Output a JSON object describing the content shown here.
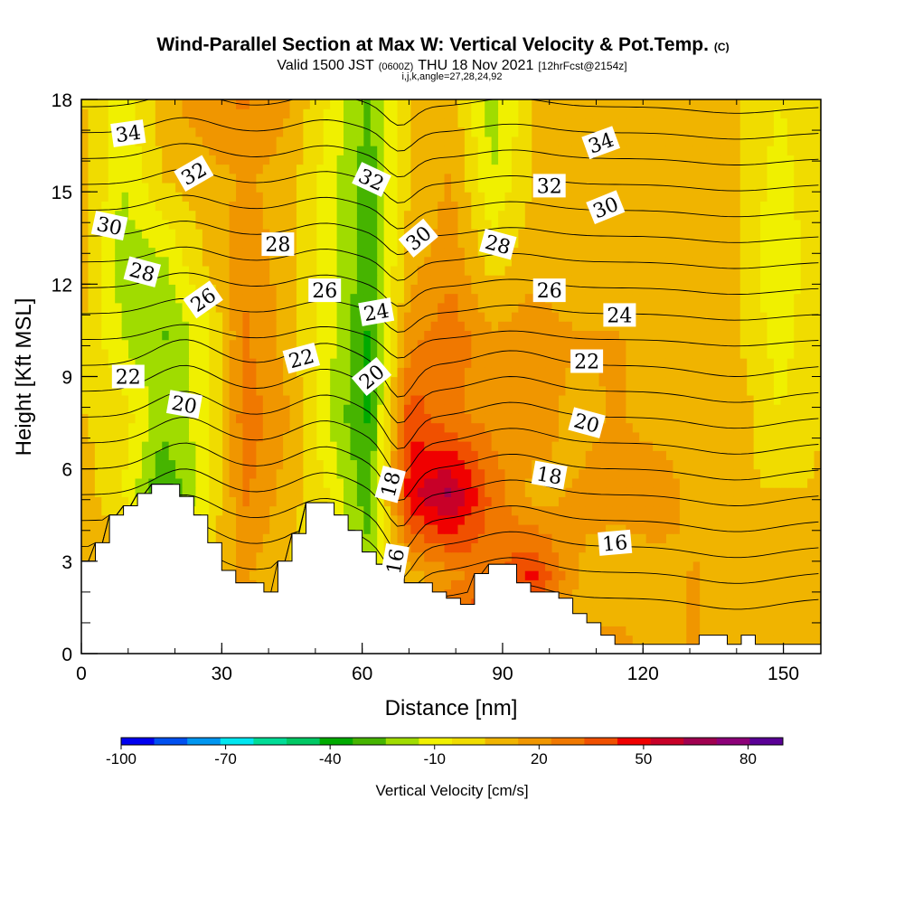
{
  "chart_data": {
    "type": "heatmap",
    "title": "Wind-Parallel Section at Max W: Vertical Velocity & Pot.Temp.",
    "title_suffix": "(C)",
    "subtitle_parts": [
      "Valid 1500 JST",
      "(0600Z)",
      "THU 18 Nov 2021",
      "[12hrFcst@2154z]"
    ],
    "subtitle2": "i,j,k,angle=27,28,24,92",
    "xlabel": "Distance [nm]",
    "ylabel": "Height [Kft MSL]",
    "xlim": [
      0,
      158
    ],
    "ylim": [
      0,
      18
    ],
    "x_ticks": [
      0,
      30,
      60,
      90,
      120,
      150
    ],
    "y_ticks": [
      0,
      3,
      6,
      9,
      12,
      15,
      18
    ],
    "x_minor_step": 10,
    "y_minor_step": 1,
    "colorbar": {
      "label": "Vertical Velocity [cm/s]",
      "tick_labels": [
        "-100",
        "-70",
        "-40",
        "-10",
        "20",
        "50",
        "80"
      ],
      "colors": [
        "#0000f0",
        "#0050f0",
        "#0096f0",
        "#00e6f0",
        "#00dc96",
        "#00c864",
        "#00aa00",
        "#46b400",
        "#a0dc00",
        "#f0f000",
        "#f0dc00",
        "#f0b400",
        "#f09600",
        "#f07800",
        "#f05000",
        "#f00000",
        "#c80028",
        "#a00050",
        "#8c0078",
        "#5a0096"
      ],
      "range": [
        -100,
        90
      ]
    },
    "contour_labels": [
      {
        "text": "34",
        "x": 10,
        "y": 16.9,
        "rot": -8
      },
      {
        "text": "32",
        "x": 24,
        "y": 15.6,
        "rot": -30
      },
      {
        "text": "32",
        "x": 62,
        "y": 15.4,
        "rot": 25
      },
      {
        "text": "32",
        "x": 100,
        "y": 15.2,
        "rot": 0
      },
      {
        "text": "34",
        "x": 111,
        "y": 16.6,
        "rot": -20
      },
      {
        "text": "30",
        "x": 6,
        "y": 13.9,
        "rot": 12
      },
      {
        "text": "30",
        "x": 72,
        "y": 13.5,
        "rot": -40
      },
      {
        "text": "30",
        "x": 112,
        "y": 14.5,
        "rot": -22
      },
      {
        "text": "28",
        "x": 13,
        "y": 12.4,
        "rot": 15
      },
      {
        "text": "28",
        "x": 42,
        "y": 13.3,
        "rot": 0
      },
      {
        "text": "28",
        "x": 89,
        "y": 13.3,
        "rot": 15
      },
      {
        "text": "26",
        "x": 26,
        "y": 11.5,
        "rot": -35
      },
      {
        "text": "26",
        "x": 52,
        "y": 11.8,
        "rot": 0
      },
      {
        "text": "26",
        "x": 100,
        "y": 11.8,
        "rot": 0
      },
      {
        "text": "24",
        "x": 63,
        "y": 11.1,
        "rot": -10
      },
      {
        "text": "24",
        "x": 115,
        "y": 11.0,
        "rot": 0
      },
      {
        "text": "22",
        "x": 10,
        "y": 9.0,
        "rot": 0
      },
      {
        "text": "22",
        "x": 47,
        "y": 9.6,
        "rot": -15
      },
      {
        "text": "22",
        "x": 108,
        "y": 9.5,
        "rot": 0
      },
      {
        "text": "20",
        "x": 22,
        "y": 8.1,
        "rot": 10
      },
      {
        "text": "20",
        "x": 62,
        "y": 9.0,
        "rot": -40
      },
      {
        "text": "20",
        "x": 108,
        "y": 7.5,
        "rot": 15
      },
      {
        "text": "18",
        "x": 66,
        "y": 5.5,
        "rot": -75
      },
      {
        "text": "18",
        "x": 100,
        "y": 5.8,
        "rot": 10
      },
      {
        "text": "16",
        "x": 67,
        "y": 3.0,
        "rot": -80
      },
      {
        "text": "16",
        "x": 114,
        "y": 3.6,
        "rot": -5
      }
    ],
    "terrain": [
      [
        0,
        3
      ],
      [
        3,
        3
      ],
      [
        3,
        3.6
      ],
      [
        6,
        3.6
      ],
      [
        6,
        4.5
      ],
      [
        9,
        4.5
      ],
      [
        9,
        4.8
      ],
      [
        12,
        4.8
      ],
      [
        12,
        5.2
      ],
      [
        15,
        5.2
      ],
      [
        15,
        5.5
      ],
      [
        21,
        5.5
      ],
      [
        21,
        5.1
      ],
      [
        24,
        5.1
      ],
      [
        24,
        4.5
      ],
      [
        27,
        4.5
      ],
      [
        27,
        3.6
      ],
      [
        30,
        3.6
      ],
      [
        30,
        2.7
      ],
      [
        33,
        2.7
      ],
      [
        33,
        2.3
      ],
      [
        39,
        2.3
      ],
      [
        39,
        2.0
      ],
      [
        42,
        2.0
      ],
      [
        42,
        3.0
      ],
      [
        45,
        3.0
      ],
      [
        45,
        3.9
      ],
      [
        48,
        3.9
      ],
      [
        48,
        4.9
      ],
      [
        54,
        4.9
      ],
      [
        54,
        4.5
      ],
      [
        57,
        4.5
      ],
      [
        57,
        4.0
      ],
      [
        60,
        4.0
      ],
      [
        60,
        3.3
      ],
      [
        63,
        3.3
      ],
      [
        63,
        2.9
      ],
      [
        66,
        2.9
      ],
      [
        66,
        2.6
      ],
      [
        69,
        2.6
      ],
      [
        69,
        2.3
      ],
      [
        75,
        2.3
      ],
      [
        75,
        2.0
      ],
      [
        78,
        2.0
      ],
      [
        78,
        1.8
      ],
      [
        81,
        1.8
      ],
      [
        81,
        1.6
      ],
      [
        84,
        1.6
      ],
      [
        84,
        2.6
      ],
      [
        87,
        2.6
      ],
      [
        87,
        2.9
      ],
      [
        93,
        2.9
      ],
      [
        93,
        2.3
      ],
      [
        96,
        2.3
      ],
      [
        96,
        2.0
      ],
      [
        102,
        2.0
      ],
      [
        102,
        1.8
      ],
      [
        105,
        1.8
      ],
      [
        105,
        1.3
      ],
      [
        108,
        1.3
      ],
      [
        108,
        1.0
      ],
      [
        111,
        1.0
      ],
      [
        111,
        0.6
      ],
      [
        114,
        0.6
      ],
      [
        114,
        0.3
      ],
      [
        132,
        0.3
      ],
      [
        132,
        0.6
      ],
      [
        138,
        0.6
      ],
      [
        138,
        0.3
      ],
      [
        141,
        0.3
      ],
      [
        141,
        0.6
      ],
      [
        144,
        0.6
      ],
      [
        144,
        0.3
      ],
      [
        158,
        0.3
      ]
    ],
    "w_field": [
      [
        5,
        25,
        30,
        35,
        20,
        15,
        -10,
        -15,
        10,
        45,
        50,
        20,
        10,
        20,
        10,
        15,
        5,
        10,
        5
      ],
      [
        8,
        20,
        15,
        10,
        15,
        5,
        -10,
        -20,
        10,
        20,
        30,
        45,
        15,
        5,
        10,
        15,
        5,
        5,
        5
      ],
      [
        10,
        -5,
        -35,
        -10,
        25,
        10,
        -5,
        -30,
        50,
        65,
        30,
        10,
        15,
        20,
        20,
        10,
        5,
        5,
        5
      ],
      [
        5,
        0,
        -20,
        -10,
        30,
        15,
        -15,
        -35,
        40,
        25,
        20,
        20,
        10,
        15,
        10,
        10,
        10,
        -5,
        5
      ],
      [
        5,
        -15,
        -25,
        -10,
        25,
        10,
        -10,
        -35,
        20,
        30,
        15,
        20,
        15,
        15,
        10,
        10,
        5,
        -10,
        5
      ],
      [
        10,
        -20,
        -15,
        5,
        20,
        10,
        -10,
        -30,
        10,
        20,
        0,
        10,
        5,
        5,
        10,
        5,
        5,
        -15,
        5
      ],
      [
        10,
        -15,
        5,
        10,
        15,
        10,
        -10,
        -30,
        5,
        15,
        -15,
        5,
        5,
        5,
        5,
        5,
        5,
        -10,
        5
      ],
      [
        5,
        -10,
        10,
        20,
        25,
        15,
        -5,
        -25,
        5,
        10,
        -20,
        5,
        5,
        5,
        5,
        5,
        5,
        -5,
        5
      ]
    ]
  }
}
